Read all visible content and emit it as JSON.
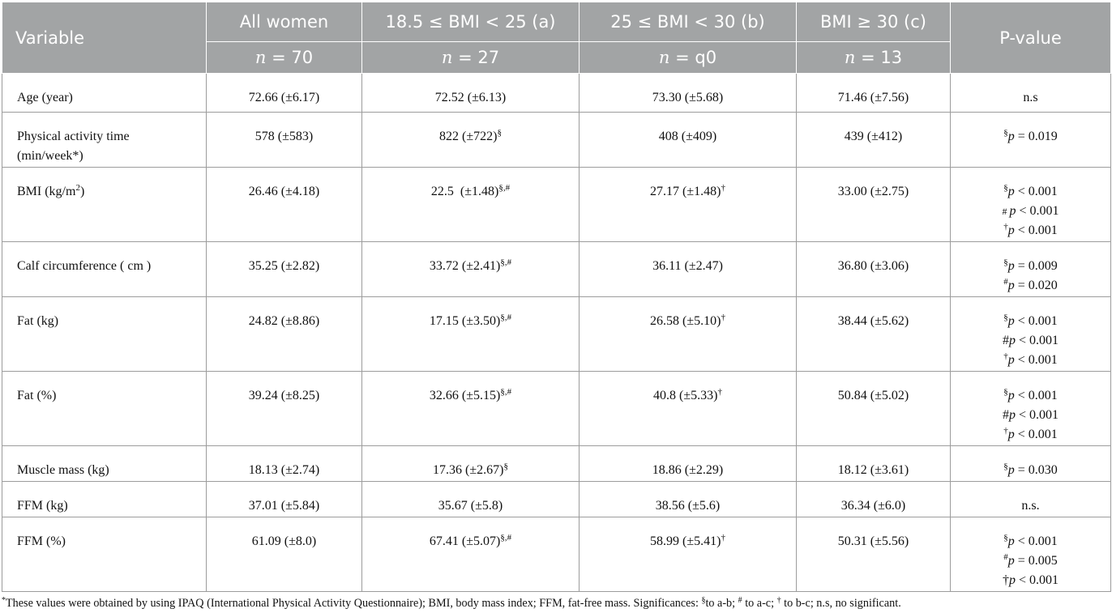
{
  "header": {
    "variable": "Variable",
    "all_women": "All women",
    "group_a": "18.5 ≤ BMI < 25 (a)",
    "group_b": "25 ≤ BMI < 30 (b)",
    "group_c": "BMI ≥ 30 (c)",
    "pvalue": "P-value",
    "n_symbol": "n",
    "n_all": "= 70",
    "n_a": "= 27",
    "n_b": "= q0",
    "n_c": "= 13"
  },
  "rows": [
    {
      "label": "Age (year)",
      "all": "72.66 (±6.17)",
      "a": "72.52 (±6.13)",
      "b": "73.30 (±5.68)",
      "c": "71.46 (±7.56)",
      "p": "n.s"
    },
    {
      "label1": "Physical activity time",
      "label2": "(min/week*)",
      "all": "578 (±583)",
      "a": "822 (±722)",
      "a_sup": "§",
      "b": "408 (±409)",
      "c": "439 (±412)",
      "p1_sup": "§",
      "p1_sym": "p",
      "p1_val": " = 0.019"
    },
    {
      "label": "BMI (kg/m",
      "label_sup": "2",
      "label_end": ")",
      "all": "26.46 (±4.18)",
      "a": "22.5  (±1.48)",
      "a_sup": "§,#",
      "b": "27.17 (±1.48)",
      "b_sup": "†",
      "c": "33.00 (±2.75)",
      "p1_sup": "§",
      "p1_sym": "p",
      "p1_val": " < 0.001",
      "p2_pre": "# ",
      "p2_sym": "p",
      "p2_val": " < 0.001",
      "p3_sup": "†",
      "p3_sym": "p",
      "p3_val": " < 0.001"
    },
    {
      "label": "Calf circumference ( cm )",
      "all": "35.25 (±2.82)",
      "a": "33.72 (±2.41)",
      "a_sup": "§,#",
      "b": "36.11 (±2.47)",
      "c": "36.80 (±3.06)",
      "p1_sup": "§",
      "p1_sym": "p",
      "p1_val": " = 0.009",
      "p2_sup": "#",
      "p2_sym": "p",
      "p2_val": " = 0.020"
    },
    {
      "label": "Fat (kg)",
      "all": "24.82 (±8.86)",
      "a": "17.15 (±3.50)",
      "a_sup": "§,#",
      "b": "26.58 (±5.10)",
      "b_sup": "†",
      "c": "38.44 (±5.62)",
      "p1_sup": "§",
      "p1_sym": "p",
      "p1_val": " < 0.001",
      "p2_pre": "#",
      "p2_sym": "p",
      "p2_val": " < 0.001",
      "p3_sup": "†",
      "p3_sym": "p",
      "p3_val": " < 0.001"
    },
    {
      "label": "Fat (%)",
      "all": "39.24 (±8.25)",
      "a": "32.66 (±5.15)",
      "a_sup": "§,#",
      "b": "40.8 (±5.33)",
      "b_sup": "†",
      "c": "50.84 (±5.02)",
      "p1_sup": "§",
      "p1_sym": "p",
      "p1_val": " < 0.001",
      "p2_pre": "#",
      "p2_sym": "p",
      "p2_val": " < 0.001",
      "p3_sup": "†",
      "p3_sym": "p",
      "p3_val": " < 0.001"
    },
    {
      "label": "Muscle mass (kg)",
      "all": "18.13 (±2.74)",
      "a": "17.36 (±2.67)",
      "a_sup": "§",
      "b": "18.86 (±2.29)",
      "c": "18.12 (±3.61)",
      "p1_sup": "§",
      "p1_sym": "p",
      "p1_val": " = 0.030"
    },
    {
      "label": "FFM (kg)",
      "all": "37.01 (±5.84)",
      "a": "35.67 (±5.8)",
      "b": "38.56 (±5.6)",
      "c": "36.34 (±6.0)",
      "p": "n.s."
    },
    {
      "label": "FFM (%)",
      "all": "61.09 (±8.0)",
      "a": "67.41 (±5.07)",
      "a_sup": "§,#",
      "b": "58.99 (±5.41)",
      "b_sup": "†",
      "c": "50.31 (±5.56)",
      "p1_sup": "§",
      "p1_sym": "p",
      "p1_val": " < 0.001",
      "p2_sup": "#",
      "p2_sym": "p",
      "p2_val": " = 0.005",
      "p3_pre": "†",
      "p3_sym": "p",
      "p3_val": " < 0.001"
    }
  ],
  "footnote": {
    "star": "*",
    "text1": "These values were obtained by using IPAQ (International Physical Activity Questionnaire); BMI, body mass index; FFM, fat-free mass. Significances: ",
    "sym1": "§",
    "text2": "to a-b; ",
    "sym2": "#",
    "text3": " to a-c; ",
    "sym3": "†",
    "text4": " to b-c; n.s, no significant."
  }
}
